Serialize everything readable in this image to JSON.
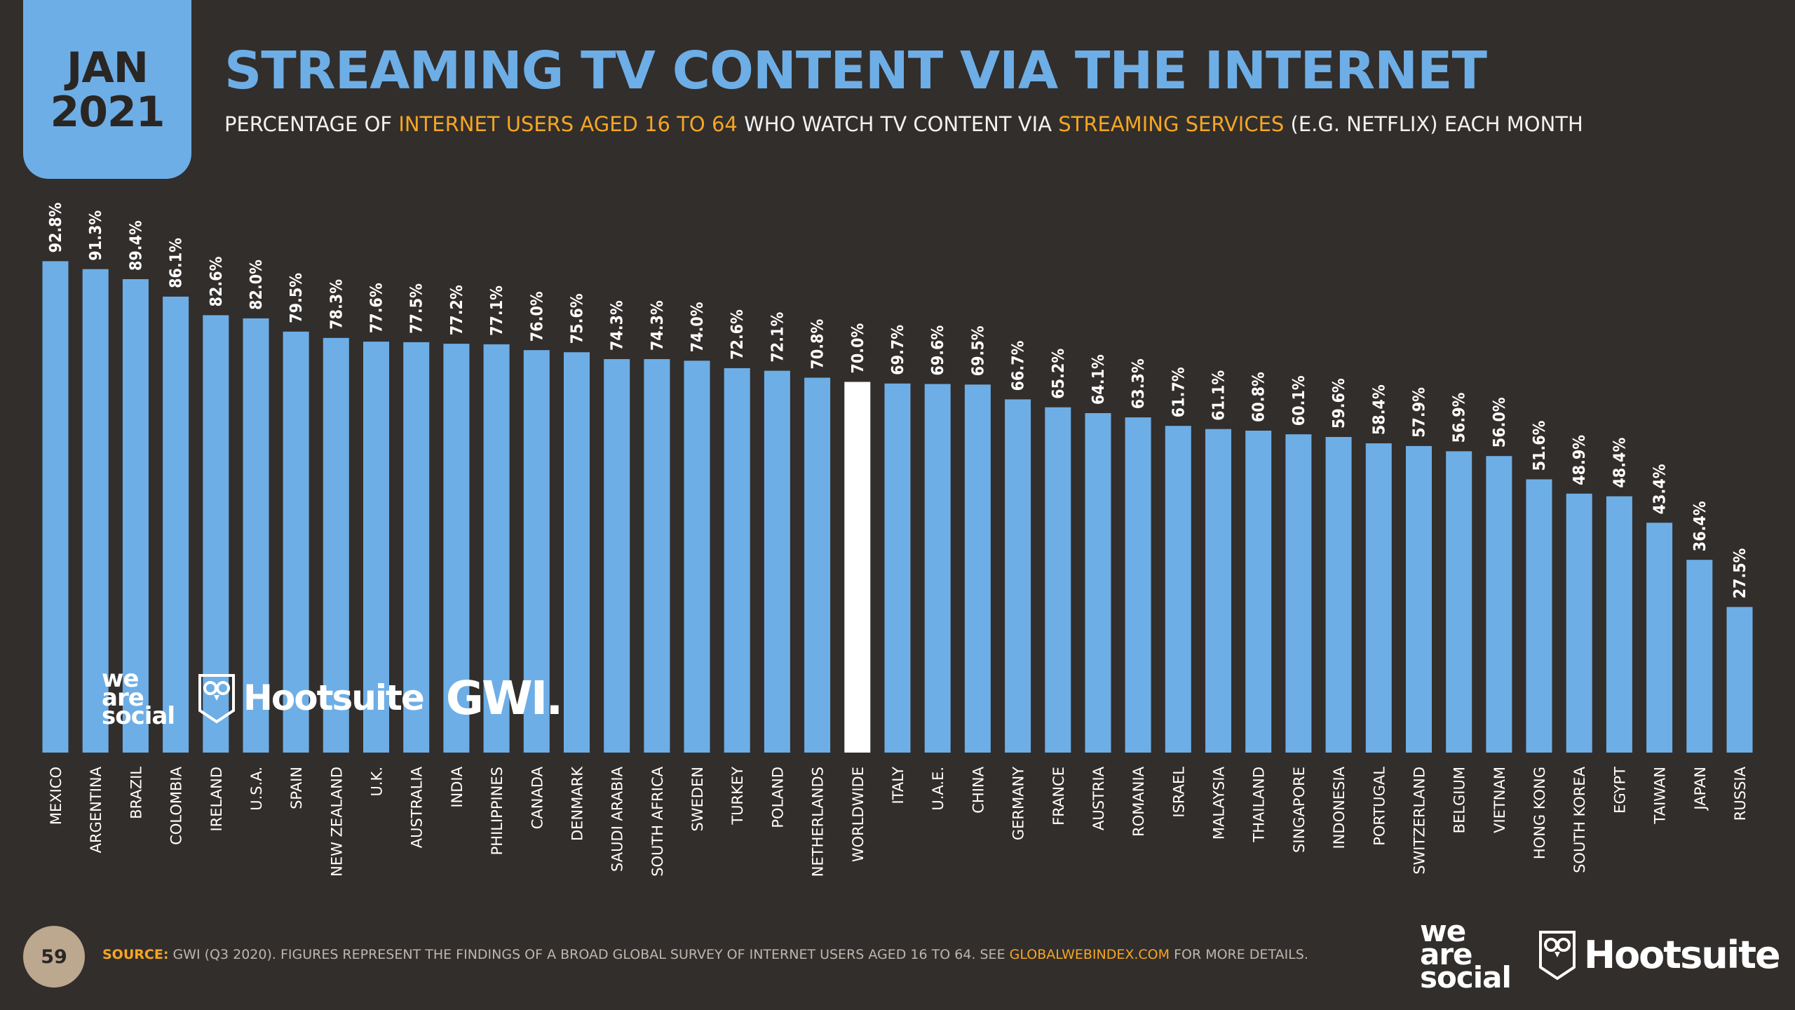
{
  "header": {
    "date_month": "JAN",
    "date_year": "2021",
    "title": "STREAMING TV CONTENT VIA THE INTERNET",
    "subtitle_parts": {
      "p1": "PERCENTAGE OF ",
      "p2": "INTERNET USERS AGED 16 TO 64",
      "p3": " WHO WATCH TV CONTENT VIA ",
      "p4": "STREAMING SERVICES",
      "p5": " (E.G. NETFLIX) EACH MONTH"
    }
  },
  "colors": {
    "background": "#322e2c",
    "bar": "#6eaee6",
    "highlight_bar": "#ffffff",
    "accent": "#f5a623",
    "title": "#6eaee6"
  },
  "chart_data": {
    "type": "bar",
    "title": "STREAMING TV CONTENT VIA THE INTERNET",
    "categories": [
      "MEXICO",
      "ARGENTINA",
      "BRAZIL",
      "COLOMBIA",
      "IRELAND",
      "U.S.A.",
      "SPAIN",
      "NEW ZEALAND",
      "U.K.",
      "AUSTRALIA",
      "INDIA",
      "PHILIPPINES",
      "CANADA",
      "DENMARK",
      "SAUDI ARABIA",
      "SOUTH AFRICA",
      "SWEDEN",
      "TURKEY",
      "POLAND",
      "NETHERLANDS",
      "WORLDWIDE",
      "ITALY",
      "U.A.E.",
      "CHINA",
      "GERMANY",
      "FRANCE",
      "AUSTRIA",
      "ROMANIA",
      "ISRAEL",
      "MALAYSIA",
      "THAILAND",
      "SINGAPORE",
      "INDONESIA",
      "PORTUGAL",
      "SWITZERLAND",
      "BELGIUM",
      "VIETNAM",
      "HONG KONG",
      "SOUTH KOREA",
      "EGYPT",
      "TAIWAN",
      "JAPAN",
      "RUSSIA"
    ],
    "values": [
      92.8,
      91.3,
      89.4,
      86.1,
      82.6,
      82.0,
      79.5,
      78.3,
      77.6,
      77.5,
      77.2,
      77.1,
      76.0,
      75.6,
      74.3,
      74.3,
      74.0,
      72.6,
      72.1,
      70.8,
      70.0,
      69.7,
      69.6,
      69.5,
      66.7,
      65.2,
      64.1,
      63.3,
      61.7,
      61.1,
      60.8,
      60.1,
      59.6,
      58.4,
      57.9,
      56.9,
      56.0,
      51.6,
      48.9,
      48.4,
      43.4,
      36.4,
      27.5
    ],
    "labels": [
      "92.8%",
      "91.3%",
      "89.4%",
      "86.1%",
      "82.6%",
      "82.0%",
      "79.5%",
      "78.3%",
      "77.6%",
      "77.5%",
      "77.2%",
      "77.1%",
      "76.0%",
      "75.6%",
      "74.3%",
      "74.3%",
      "74.0%",
      "72.6%",
      "72.1%",
      "70.8%",
      "70.0%",
      "69.7%",
      "69.6%",
      "69.5%",
      "66.7%",
      "65.2%",
      "64.1%",
      "63.3%",
      "61.7%",
      "61.1%",
      "60.8%",
      "60.1%",
      "59.6%",
      "58.4%",
      "57.9%",
      "56.9%",
      "56.0%",
      "51.6%",
      "48.9%",
      "48.4%",
      "43.4%",
      "36.4%",
      "27.5%"
    ],
    "highlight": "WORLDWIDE",
    "ylim": [
      0,
      100
    ],
    "xlabel": "",
    "ylabel": "",
    "grid": false,
    "legend": "none"
  },
  "chart_logos": {
    "we": "we",
    "are": "are",
    "social": "social",
    "hootsuite": "Hootsuite",
    "gwi": "GWI."
  },
  "footer": {
    "page_number": "59",
    "source_label": "SOURCE:",
    "source_text": " GWI (Q3 2020). FIGURES REPRESENT THE FINDINGS OF A BROAD GLOBAL SURVEY OF INTERNET USERS AGED 16 TO 64. SEE ",
    "source_link": "GLOBALWEBINDEX.COM",
    "source_tail": " FOR MORE DETAILS.",
    "logo_we": "we",
    "logo_are": "are",
    "logo_social": "social",
    "logo_hootsuite": "Hootsuite"
  }
}
